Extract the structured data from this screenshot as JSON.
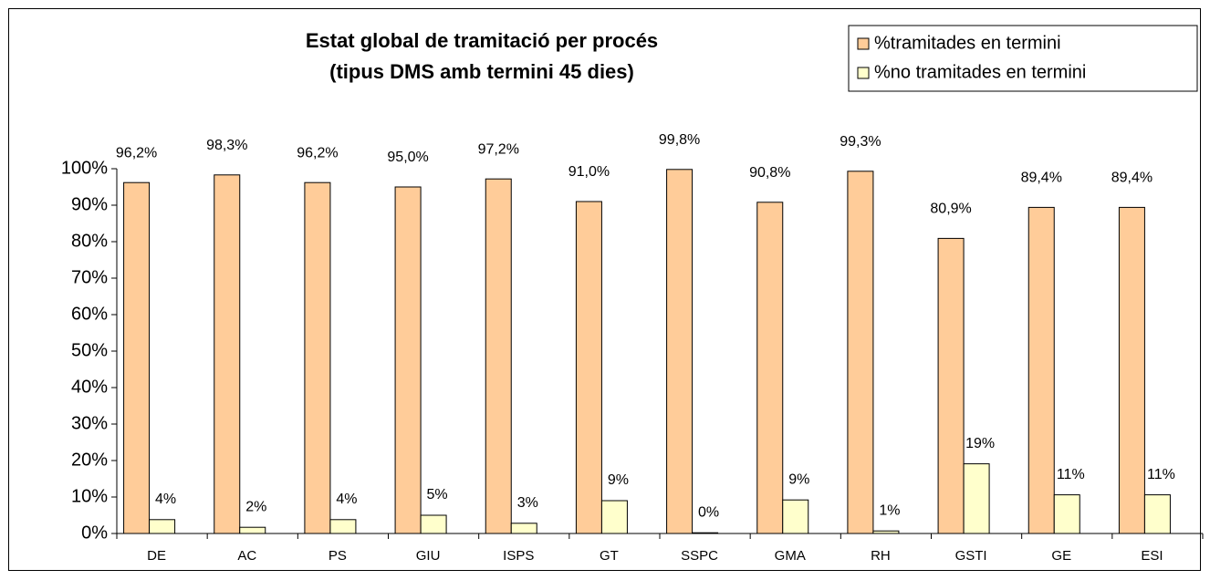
{
  "chart_data": {
    "type": "bar",
    "title": "Estat global de tramitació per procés",
    "subtitle": "(tipus DMS amb termini 45 dies)",
    "categories": [
      "DE",
      "AC",
      "PS",
      "GIU",
      "ISPS",
      "GT",
      "SSPC",
      "GMA",
      "RH",
      "GSTI",
      "GE",
      "ESI"
    ],
    "series": [
      {
        "name": "%tramitades en termini",
        "color": "#FFCC99",
        "values": [
          96.2,
          98.3,
          96.2,
          95.0,
          97.2,
          91.0,
          99.8,
          90.8,
          99.3,
          80.9,
          89.4,
          89.4
        ],
        "value_labels": [
          "96,2%",
          "98,3%",
          "96,2%",
          "95,0%",
          "97,2%",
          "91,0%",
          "99,8%",
          "90,8%",
          "99,3%",
          "80,9%",
          "89,4%",
          "89,4%"
        ]
      },
      {
        "name": "%no tramitades en termini",
        "color": "#FFFFCC",
        "values": [
          3.8,
          1.7,
          3.8,
          5.0,
          2.8,
          9.0,
          0.2,
          9.2,
          0.7,
          19.1,
          10.6,
          10.6
        ],
        "value_labels": [
          "4%",
          "2%",
          "4%",
          "5%",
          "3%",
          "9%",
          "0%",
          "9%",
          "1%",
          "19%",
          "11%",
          "11%"
        ]
      }
    ],
    "ylim": [
      0,
      100
    ],
    "yticks": [
      {
        "value": 0,
        "label": "0%"
      },
      {
        "value": 10,
        "label": "10%"
      },
      {
        "value": 20,
        "label": "20%"
      },
      {
        "value": 30,
        "label": "30%"
      },
      {
        "value": 40,
        "label": "40%"
      },
      {
        "value": 50,
        "label": "50%"
      },
      {
        "value": 60,
        "label": "60%"
      },
      {
        "value": 70,
        "label": "70%"
      },
      {
        "value": 80,
        "label": "80%"
      },
      {
        "value": 90,
        "label": "90%"
      },
      {
        "value": 100,
        "label": "100%"
      }
    ],
    "legend": "top-right"
  }
}
